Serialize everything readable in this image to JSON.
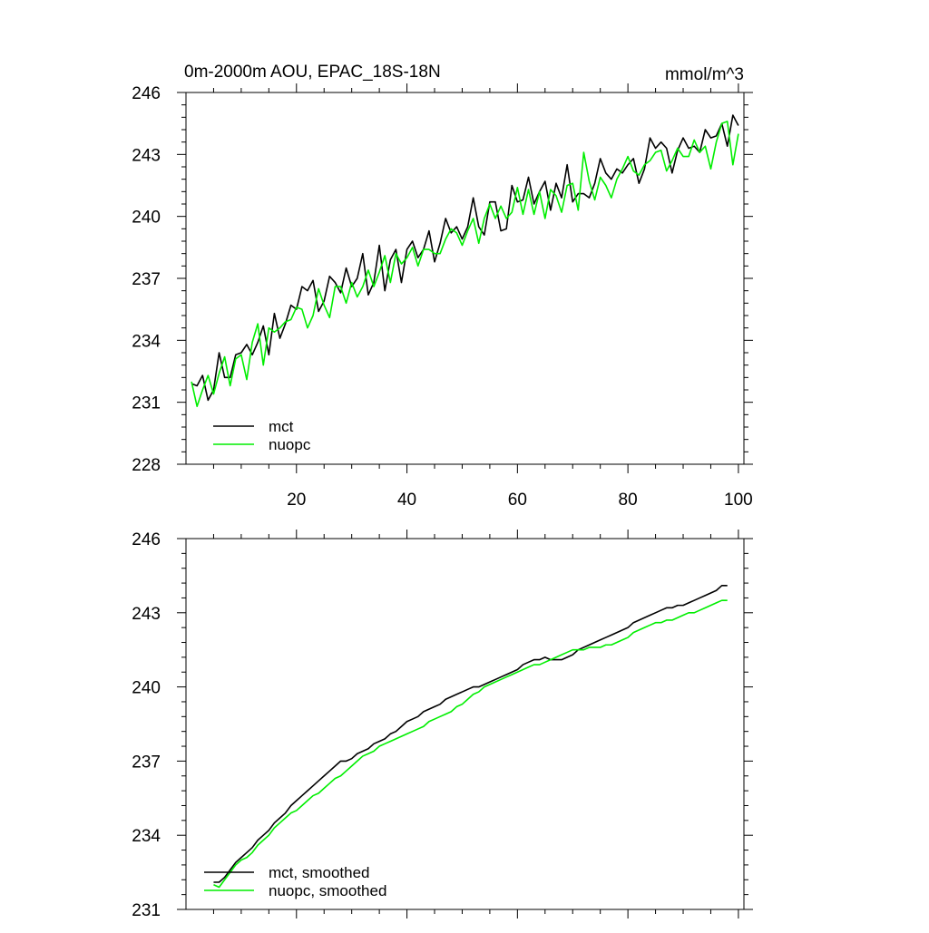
{
  "title_left": "0m-2000m AOU, EPAC_18S-18N",
  "title_right": "mmol/m^3",
  "chart_data": [
    {
      "type": "line",
      "title": "0m-2000m AOU, EPAC_18S-18N",
      "units": "mmol/m^3",
      "xlim": [
        0,
        101
      ],
      "ylim": [
        228,
        246
      ],
      "xticks": [
        20,
        40,
        60,
        80,
        100
      ],
      "yticks": [
        228,
        231,
        234,
        237,
        240,
        243,
        246
      ],
      "tick_labels_x": [
        "20",
        "40",
        "60",
        "80",
        "100"
      ],
      "tick_labels_y": [
        "228",
        "231",
        "234",
        "237",
        "240",
        "243",
        "246"
      ],
      "legend_position": "bottom-left",
      "series": [
        {
          "name": "mct",
          "color": "#000000",
          "x": [
            1,
            2,
            3,
            4,
            5,
            6,
            7,
            8,
            9,
            10,
            11,
            12,
            13,
            14,
            15,
            16,
            17,
            18,
            19,
            20,
            21,
            22,
            23,
            24,
            25,
            26,
            27,
            28,
            29,
            30,
            31,
            32,
            33,
            34,
            35,
            36,
            37,
            38,
            39,
            40,
            41,
            42,
            43,
            44,
            45,
            46,
            47,
            48,
            49,
            50,
            51,
            52,
            53,
            54,
            55,
            56,
            57,
            58,
            59,
            60,
            61,
            62,
            63,
            64,
            65,
            66,
            67,
            68,
            69,
            70,
            71,
            72,
            73,
            74,
            75,
            76,
            77,
            78,
            79,
            80,
            81,
            82,
            83,
            84,
            85,
            86,
            87,
            88,
            89,
            90,
            91,
            92,
            93,
            94,
            95,
            96,
            97,
            98,
            99,
            100
          ],
          "values": [
            231.9,
            231.8,
            232.3,
            231.1,
            231.6,
            233.4,
            232.2,
            232.2,
            233.3,
            233.4,
            233.8,
            233.3,
            233.9,
            234.7,
            233.3,
            235.3,
            234.1,
            234.8,
            235.7,
            235.5,
            236.6,
            236.4,
            236.9,
            235.4,
            235.9,
            237.1,
            236.8,
            236.3,
            237.5,
            236.6,
            237.0,
            238.2,
            236.2,
            236.8,
            238.6,
            236.4,
            237.9,
            238.4,
            236.8,
            238.4,
            238.8,
            238.0,
            238.4,
            239.3,
            237.8,
            238.7,
            239.9,
            239.2,
            239.5,
            238.9,
            239.5,
            240.9,
            239.5,
            239.1,
            240.7,
            240.7,
            239.3,
            239.4,
            241.5,
            240.7,
            240.8,
            241.9,
            240.6,
            241.2,
            241.7,
            240.3,
            241.6,
            240.9,
            242.5,
            240.7,
            241.1,
            241.1,
            240.9,
            241.6,
            242.8,
            242.1,
            241.8,
            242.3,
            242.1,
            242.5,
            242.8,
            241.6,
            242.3,
            243.8,
            243.3,
            243.6,
            243.3,
            242.1,
            243.2,
            243.8,
            243.3,
            243.4,
            243.1,
            244.2,
            243.8,
            243.9,
            244.5,
            243.4,
            244.9,
            244.4
          ]
        },
        {
          "name": "nuopc",
          "color": "#00ee00",
          "x": [
            1,
            2,
            3,
            4,
            5,
            6,
            7,
            8,
            9,
            10,
            11,
            12,
            13,
            14,
            15,
            16,
            17,
            18,
            19,
            20,
            21,
            22,
            23,
            24,
            25,
            26,
            27,
            28,
            29,
            30,
            31,
            32,
            33,
            34,
            35,
            36,
            37,
            38,
            39,
            40,
            41,
            42,
            43,
            44,
            45,
            46,
            47,
            48,
            49,
            50,
            51,
            52,
            53,
            54,
            55,
            56,
            57,
            58,
            59,
            60,
            61,
            62,
            63,
            64,
            65,
            66,
            67,
            68,
            69,
            70,
            71,
            72,
            73,
            74,
            75,
            76,
            77,
            78,
            79,
            80,
            81,
            82,
            83,
            84,
            85,
            86,
            87,
            88,
            89,
            90,
            91,
            92,
            93,
            94,
            95,
            96,
            97,
            98,
            99,
            100
          ],
          "values": [
            232.0,
            230.8,
            231.6,
            232.3,
            231.4,
            232.4,
            233.2,
            231.8,
            233.1,
            233.3,
            232.1,
            233.9,
            234.8,
            232.8,
            234.6,
            234.4,
            234.6,
            234.9,
            235.0,
            235.6,
            235.5,
            234.6,
            235.2,
            236.5,
            235.7,
            235.1,
            236.6,
            236.6,
            235.8,
            236.8,
            236.1,
            236.6,
            237.4,
            236.6,
            237.3,
            238.1,
            236.8,
            238.2,
            237.7,
            238.0,
            238.5,
            237.6,
            238.4,
            238.4,
            238.2,
            238.2,
            238.9,
            239.4,
            239.2,
            238.6,
            239.3,
            239.9,
            238.7,
            239.9,
            240.6,
            239.9,
            240.5,
            239.9,
            240.2,
            241.4,
            240.1,
            241.3,
            240.1,
            241.2,
            239.9,
            241.3,
            241.0,
            240.2,
            241.5,
            241.6,
            240.3,
            243.1,
            241.7,
            240.8,
            241.9,
            241.5,
            240.9,
            241.8,
            242.3,
            242.9,
            242.2,
            242.0,
            242.5,
            242.7,
            243.1,
            243.2,
            242.2,
            242.7,
            243.3,
            242.9,
            242.9,
            243.7,
            243.1,
            243.4,
            242.3,
            243.6,
            244.5,
            244.6,
            242.5,
            244.0
          ]
        }
      ]
    },
    {
      "type": "line",
      "title": "",
      "xlim": [
        0,
        101
      ],
      "ylim": [
        231,
        246
      ],
      "xticks": [
        20,
        40,
        60,
        80,
        100
      ],
      "yticks": [
        231,
        234,
        237,
        240,
        243,
        246
      ],
      "tick_labels_y": [
        "231",
        "234",
        "237",
        "240",
        "243",
        "246"
      ],
      "legend_position": "bottom-left",
      "series": [
        {
          "name": "mct, smoothed",
          "color": "#000000",
          "x": [
            5,
            6,
            7,
            8,
            9,
            10,
            11,
            12,
            13,
            14,
            15,
            16,
            17,
            18,
            19,
            20,
            21,
            22,
            23,
            24,
            25,
            26,
            27,
            28,
            29,
            30,
            31,
            32,
            33,
            34,
            35,
            36,
            37,
            38,
            39,
            40,
            41,
            42,
            43,
            44,
            45,
            46,
            47,
            48,
            49,
            50,
            51,
            52,
            53,
            54,
            55,
            56,
            57,
            58,
            59,
            60,
            61,
            62,
            63,
            64,
            65,
            66,
            67,
            68,
            69,
            70,
            71,
            72,
            73,
            74,
            75,
            76,
            77,
            78,
            79,
            80,
            81,
            82,
            83,
            84,
            85,
            86,
            87,
            88,
            89,
            90,
            91,
            92,
            93,
            94,
            95,
            96,
            97,
            98
          ],
          "values": [
            232.1,
            232.1,
            232.3,
            232.6,
            232.9,
            233.1,
            233.3,
            233.5,
            233.8,
            234.0,
            234.2,
            234.5,
            234.7,
            234.9,
            235.2,
            235.4,
            235.6,
            235.8,
            236.0,
            236.2,
            236.4,
            236.6,
            236.8,
            237.0,
            237.0,
            237.1,
            237.3,
            237.4,
            237.5,
            237.7,
            237.8,
            237.9,
            238.1,
            238.2,
            238.4,
            238.6,
            238.7,
            238.8,
            239.0,
            239.1,
            239.2,
            239.3,
            239.5,
            239.6,
            239.7,
            239.8,
            239.9,
            240.0,
            240.0,
            240.1,
            240.2,
            240.3,
            240.4,
            240.5,
            240.6,
            240.7,
            240.9,
            241.0,
            241.1,
            241.1,
            241.2,
            241.1,
            241.1,
            241.1,
            241.2,
            241.3,
            241.5,
            241.6,
            241.7,
            241.8,
            241.9,
            242.0,
            242.1,
            242.2,
            242.3,
            242.4,
            242.6,
            242.7,
            242.8,
            242.9,
            243.0,
            243.1,
            243.2,
            243.2,
            243.3,
            243.3,
            243.4,
            243.5,
            243.6,
            243.7,
            243.8,
            243.9,
            244.1,
            244.1
          ]
        },
        {
          "name": "nuopc, smoothed",
          "color": "#00ee00",
          "x": [
            5,
            6,
            7,
            8,
            9,
            10,
            11,
            12,
            13,
            14,
            15,
            16,
            17,
            18,
            19,
            20,
            21,
            22,
            23,
            24,
            25,
            26,
            27,
            28,
            29,
            30,
            31,
            32,
            33,
            34,
            35,
            36,
            37,
            38,
            39,
            40,
            41,
            42,
            43,
            44,
            45,
            46,
            47,
            48,
            49,
            50,
            51,
            52,
            53,
            54,
            55,
            56,
            57,
            58,
            59,
            60,
            61,
            62,
            63,
            64,
            65,
            66,
            67,
            68,
            69,
            70,
            71,
            72,
            73,
            74,
            75,
            76,
            77,
            78,
            79,
            80,
            81,
            82,
            83,
            84,
            85,
            86,
            87,
            88,
            89,
            90,
            91,
            92,
            93,
            94,
            95,
            96,
            97,
            98
          ],
          "values": [
            232.0,
            231.9,
            232.2,
            232.5,
            232.8,
            233.0,
            233.1,
            233.3,
            233.6,
            233.8,
            234.0,
            234.3,
            234.5,
            234.7,
            234.9,
            235.0,
            235.2,
            235.4,
            235.6,
            235.7,
            235.9,
            236.1,
            236.3,
            236.4,
            236.6,
            236.8,
            237.0,
            237.2,
            237.3,
            237.4,
            237.6,
            237.7,
            237.8,
            237.9,
            238.0,
            238.1,
            238.2,
            238.3,
            238.4,
            238.6,
            238.7,
            238.8,
            238.9,
            239.0,
            239.2,
            239.3,
            239.5,
            239.7,
            239.8,
            240.0,
            240.1,
            240.2,
            240.3,
            240.4,
            240.5,
            240.6,
            240.7,
            240.8,
            240.9,
            240.9,
            241.0,
            241.1,
            241.2,
            241.3,
            241.4,
            241.5,
            241.5,
            241.5,
            241.6,
            241.6,
            241.6,
            241.7,
            241.7,
            241.8,
            241.9,
            242.0,
            242.2,
            242.3,
            242.4,
            242.5,
            242.6,
            242.6,
            242.7,
            242.7,
            242.8,
            242.9,
            243.0,
            243.0,
            243.1,
            243.2,
            243.3,
            243.4,
            243.5,
            243.5
          ]
        }
      ]
    }
  ]
}
